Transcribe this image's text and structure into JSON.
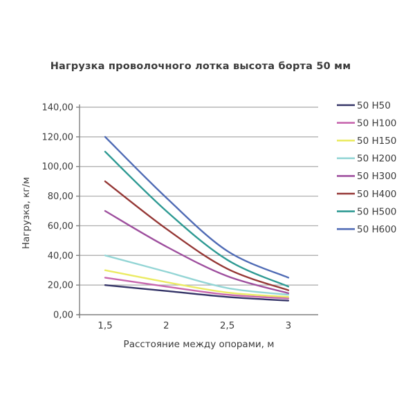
{
  "page": {
    "background": "#ffffff"
  },
  "chart_data": {
    "type": "line",
    "title": "Нагрузка проволочного лотка высота борта 50 мм",
    "xlabel": "Расстояние между опорами, м",
    "ylabel": "Нагрузка, кг/м",
    "x": [
      1.5,
      2,
      2.5,
      3
    ],
    "x_tick_labels": [
      "1,5",
      "2",
      "2,5",
      "3"
    ],
    "xlim": [
      1.29,
      3.24
    ],
    "ylim": [
      0,
      140
    ],
    "y_ticks": [
      0,
      20,
      40,
      60,
      80,
      100,
      120,
      140
    ],
    "y_tick_labels": [
      "0,00",
      "20,00",
      "40,00",
      "60,00",
      "80,00",
      "100,00",
      "120,00",
      "140,00"
    ],
    "grid": true,
    "smoothed_lines": true,
    "legend_position": "right",
    "series": [
      {
        "name": "50 H50",
        "color": "#333366",
        "values": [
          20,
          16,
          12,
          9.5
        ]
      },
      {
        "name": "50 H100",
        "color": "#c766ae",
        "values": [
          25,
          19,
          13.5,
          11
        ]
      },
      {
        "name": "50 H150",
        "color": "#ebeb63",
        "values": [
          30,
          22,
          15,
          12
        ]
      },
      {
        "name": "50 H200",
        "color": "#93d5d5",
        "values": [
          40,
          29,
          18,
          13.5
        ]
      },
      {
        "name": "50 H300",
        "color": "#9e4f9e",
        "values": [
          70,
          46,
          26,
          14.5
        ]
      },
      {
        "name": "50 H400",
        "color": "#953735",
        "values": [
          90,
          58,
          31,
          16.5
        ]
      },
      {
        "name": "50 H500",
        "color": "#2e9a93",
        "values": [
          110,
          70,
          37,
          19
        ]
      },
      {
        "name": "50 H600",
        "color": "#4f6bb5",
        "values": [
          120,
          79,
          43,
          25
        ]
      }
    ],
    "colors": {
      "grid": "#a8a8a8",
      "axis": "#7f7f7f",
      "text": "#3b3b3b"
    }
  }
}
